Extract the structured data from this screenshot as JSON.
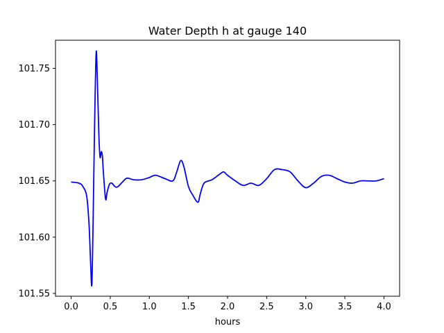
{
  "chart_data": {
    "type": "line",
    "title": "Water Depth h at gauge 140",
    "xlabel": "hours",
    "ylabel": "",
    "xlim": [
      -0.2,
      4.2
    ],
    "ylim": [
      101.5475,
      101.775
    ],
    "xticks": [
      0.0,
      0.5,
      1.0,
      1.5,
      2.0,
      2.5,
      3.0,
      3.5,
      4.0
    ],
    "xtick_labels": [
      "0.0",
      "0.5",
      "1.0",
      "1.5",
      "2.0",
      "2.5",
      "3.0",
      "3.5",
      "4.0"
    ],
    "yticks": [
      101.55,
      101.6,
      101.65,
      101.7,
      101.75
    ],
    "ytick_labels": [
      "101.55",
      "101.60",
      "101.65",
      "101.70",
      "101.75"
    ],
    "grid": false,
    "series": [
      {
        "color": "#0000ff",
        "x": [
          0.0,
          0.1,
          0.15,
          0.2,
          0.23,
          0.25,
          0.265,
          0.28,
          0.3,
          0.32,
          0.335,
          0.355,
          0.37,
          0.385,
          0.4,
          0.41,
          0.44,
          0.46,
          0.49,
          0.52,
          0.56,
          0.6,
          0.7,
          0.75,
          0.8,
          0.9,
          1.0,
          1.08,
          1.2,
          1.3,
          1.35,
          1.4,
          1.44,
          1.5,
          1.55,
          1.62,
          1.65,
          1.7,
          1.8,
          1.9,
          1.95,
          2.0,
          2.1,
          2.2,
          2.3,
          2.4,
          2.5,
          2.6,
          2.7,
          2.8,
          2.9,
          3.0,
          3.1,
          3.2,
          3.3,
          3.4,
          3.5,
          3.6,
          3.7,
          3.8,
          3.9,
          4.0
        ],
        "y": [
          101.649,
          101.648,
          101.645,
          101.636,
          101.61,
          101.575,
          101.558,
          101.61,
          101.7,
          101.764,
          101.74,
          101.69,
          101.671,
          101.676,
          101.672,
          101.66,
          101.634,
          101.64,
          101.647,
          101.648,
          101.645,
          101.645,
          101.652,
          101.652,
          101.651,
          101.651,
          101.653,
          101.655,
          101.652,
          101.65,
          101.658,
          101.668,
          101.663,
          101.645,
          101.638,
          101.631,
          101.638,
          101.648,
          101.651,
          101.656,
          101.658,
          101.655,
          101.65,
          101.646,
          101.648,
          101.646,
          101.652,
          101.66,
          101.66,
          101.658,
          101.65,
          101.644,
          101.648,
          101.654,
          101.655,
          101.652,
          101.649,
          101.648,
          101.65,
          101.65,
          101.65,
          101.652
        ]
      }
    ]
  }
}
